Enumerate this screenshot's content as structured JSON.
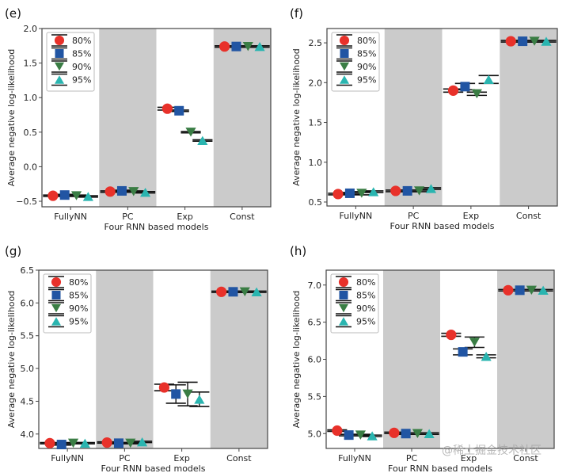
{
  "figure": {
    "watermark": "@稀土掘金技术社区"
  },
  "chart_data": [
    {
      "type": "scatter",
      "panel_label": "(e)",
      "title": "",
      "xlabel": "Four RNN based models",
      "ylabel": "Average negative log-likelihood",
      "categories": [
        "FullyNN",
        "PC",
        "Exp",
        "Const"
      ],
      "shaded_categories": [
        "PC",
        "Const"
      ],
      "ylim": [
        -0.58,
        2.0
      ],
      "yticks": [
        -0.5,
        0.0,
        0.5,
        1.0,
        1.5,
        2.0
      ],
      "ytick_labels": [
        "−0.5",
        "0.0",
        "0.5",
        "1.0",
        "1.5",
        "2.0"
      ],
      "grid": false,
      "legend": {
        "position": "top-left",
        "entries": [
          "80%",
          "85%",
          "90%",
          "95%"
        ]
      },
      "series": [
        {
          "name": "80%",
          "marker": "circle",
          "color": "#e8312a",
          "values": [
            -0.42,
            -0.36,
            0.84,
            1.74
          ],
          "errors": [
            0.01,
            0.01,
            0.02,
            0.01
          ]
        },
        {
          "name": "85%",
          "marker": "square",
          "color": "#2155a3",
          "values": [
            -0.41,
            -0.35,
            0.81,
            1.74
          ],
          "errors": [
            0.01,
            0.01,
            0.01,
            0.01
          ]
        },
        {
          "name": "90%",
          "marker": "triangle-down",
          "color": "#3a7d44",
          "values": [
            -0.42,
            -0.36,
            0.5,
            1.74
          ],
          "errors": [
            0.01,
            0.01,
            0.01,
            0.01
          ]
        },
        {
          "name": "95%",
          "marker": "triangle-up",
          "color": "#2ab5b0",
          "values": [
            -0.43,
            -0.37,
            0.38,
            1.74
          ],
          "errors": [
            0.01,
            0.01,
            0.01,
            0.01
          ]
        }
      ]
    },
    {
      "type": "scatter",
      "panel_label": "(f)",
      "title": "",
      "xlabel": "Four RNN based models",
      "ylabel": "Average negative log-likelihood",
      "categories": [
        "FullyNN",
        "PC",
        "Exp",
        "Const"
      ],
      "shaded_categories": [
        "PC",
        "Const"
      ],
      "ylim": [
        0.45,
        2.68
      ],
      "yticks": [
        0.5,
        1.0,
        1.5,
        2.0,
        2.5
      ],
      "ytick_labels": [
        "0.5",
        "1.0",
        "1.5",
        "2.0",
        "2.5"
      ],
      "grid": false,
      "legend": {
        "position": "top-left",
        "entries": [
          "80%",
          "85%",
          "90%",
          "95%"
        ]
      },
      "series": [
        {
          "name": "80%",
          "marker": "circle",
          "color": "#e8312a",
          "values": [
            0.6,
            0.64,
            1.9,
            2.52
          ],
          "errors": [
            0.01,
            0.01,
            0.02,
            0.01
          ]
        },
        {
          "name": "85%",
          "marker": "square",
          "color": "#2155a3",
          "values": [
            0.61,
            0.64,
            1.95,
            2.52
          ],
          "errors": [
            0.01,
            0.01,
            0.04,
            0.01
          ]
        },
        {
          "name": "90%",
          "marker": "triangle-down",
          "color": "#3a7d44",
          "values": [
            0.61,
            0.64,
            1.86,
            2.52
          ],
          "errors": [
            0.02,
            0.01,
            0.02,
            0.01
          ]
        },
        {
          "name": "95%",
          "marker": "triangle-up",
          "color": "#2ab5b0",
          "values": [
            0.63,
            0.67,
            2.04,
            2.52
          ],
          "errors": [
            0.01,
            0.01,
            0.05,
            0.01
          ]
        }
      ]
    },
    {
      "type": "scatter",
      "panel_label": "(g)",
      "title": "",
      "xlabel": "Four RNN based models",
      "ylabel": "Average negative log-likelihood",
      "categories": [
        "FullyNN",
        "PC",
        "Exp",
        "Const"
      ],
      "shaded_categories": [
        "PC",
        "Const"
      ],
      "ylim": [
        3.78,
        6.5
      ],
      "yticks": [
        4.0,
        4.5,
        5.0,
        5.5,
        6.0,
        6.5
      ],
      "ytick_labels": [
        "4.0",
        "4.5",
        "5.0",
        "5.5",
        "6.0",
        "6.5"
      ],
      "grid": false,
      "legend": {
        "position": "top-left",
        "entries": [
          "80%",
          "85%",
          "90%",
          "95%"
        ]
      },
      "series": [
        {
          "name": "80%",
          "marker": "circle",
          "color": "#e8312a",
          "values": [
            3.86,
            3.87,
            4.71,
            6.17
          ],
          "errors": [
            0.01,
            0.01,
            0.05,
            0.01
          ]
        },
        {
          "name": "85%",
          "marker": "square",
          "color": "#2155a3",
          "values": [
            3.84,
            3.86,
            4.61,
            6.17
          ],
          "errors": [
            0.01,
            0.01,
            0.14,
            0.01
          ]
        },
        {
          "name": "90%",
          "marker": "triangle-down",
          "color": "#3a7d44",
          "values": [
            3.86,
            3.86,
            4.61,
            6.17
          ],
          "errors": [
            0.01,
            0.01,
            0.18,
            0.01
          ]
        },
        {
          "name": "95%",
          "marker": "triangle-up",
          "color": "#2ab5b0",
          "values": [
            3.86,
            3.88,
            4.53,
            6.17
          ],
          "errors": [
            0.01,
            0.01,
            0.11,
            0.01
          ]
        }
      ]
    },
    {
      "type": "scatter",
      "panel_label": "(h)",
      "title": "",
      "xlabel": "Four RNN based models",
      "ylabel": "Average negative log-likelihood",
      "categories": [
        "FullyNN",
        "PC",
        "Exp",
        "Const"
      ],
      "shaded_categories": [
        "PC",
        "Const"
      ],
      "ylim": [
        4.8,
        7.2
      ],
      "yticks": [
        5.0,
        5.5,
        6.0,
        6.5,
        7.0
      ],
      "ytick_labels": [
        "5.0",
        "5.5",
        "6.0",
        "6.5",
        "7.0"
      ],
      "grid": false,
      "legend": {
        "position": "top-left",
        "entries": [
          "80%",
          "85%",
          "90%",
          "95%"
        ]
      },
      "series": [
        {
          "name": "80%",
          "marker": "circle",
          "color": "#e8312a",
          "values": [
            5.04,
            5.01,
            6.33,
            6.93
          ],
          "errors": [
            0.01,
            0.01,
            0.02,
            0.01
          ]
        },
        {
          "name": "85%",
          "marker": "square",
          "color": "#2155a3",
          "values": [
            4.98,
            5.0,
            6.1,
            6.93
          ],
          "errors": [
            0.01,
            0.01,
            0.04,
            0.01
          ]
        },
        {
          "name": "90%",
          "marker": "triangle-down",
          "color": "#3a7d44",
          "values": [
            4.98,
            5.0,
            6.23,
            6.93
          ],
          "errors": [
            0.01,
            0.01,
            0.07,
            0.01
          ]
        },
        {
          "name": "95%",
          "marker": "triangle-up",
          "color": "#2ab5b0",
          "values": [
            4.97,
            5.0,
            6.04,
            6.93
          ],
          "errors": [
            0.01,
            0.01,
            0.02,
            0.01
          ]
        }
      ]
    }
  ]
}
